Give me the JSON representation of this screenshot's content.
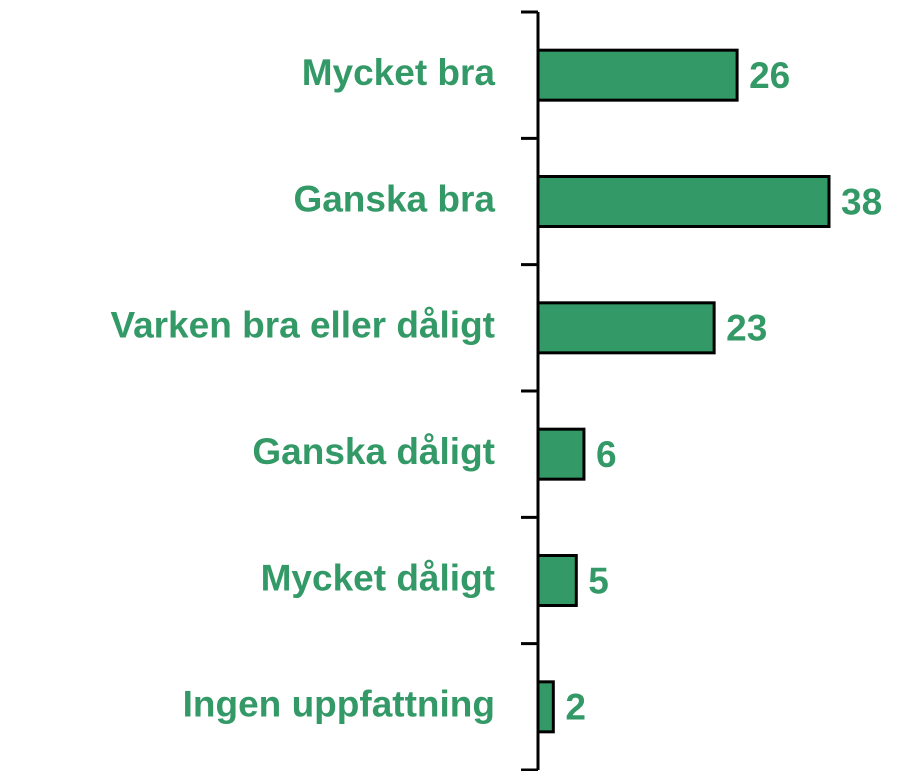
{
  "chart_data": {
    "type": "hbar",
    "categories": [
      "Mycket bra",
      "Ganska bra",
      "Varken bra eller dåligt",
      "Ganska dåligt",
      "Mycket dåligt",
      "Ingen uppfattning"
    ],
    "values": [
      26,
      38,
      23,
      6,
      5,
      2
    ],
    "color": "#339966",
    "label_color": "#339966"
  }
}
